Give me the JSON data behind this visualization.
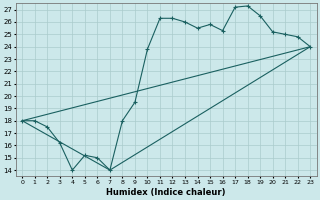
{
  "xlabel": "Humidex (Indice chaleur)",
  "background_color": "#cce8ea",
  "grid_color": "#aacccc",
  "line_color": "#1a6060",
  "xlim": [
    -0.5,
    23.5
  ],
  "ylim": [
    13.5,
    27.5
  ],
  "yticks": [
    14,
    15,
    16,
    17,
    18,
    19,
    20,
    21,
    22,
    23,
    24,
    25,
    26,
    27
  ],
  "xticks": [
    0,
    1,
    2,
    3,
    4,
    5,
    6,
    7,
    8,
    9,
    10,
    11,
    12,
    13,
    14,
    15,
    16,
    17,
    18,
    19,
    20,
    21,
    22,
    23
  ],
  "line1_x": [
    0,
    1,
    2,
    3,
    4,
    5,
    6,
    7,
    8,
    9,
    10,
    11,
    12,
    13,
    14,
    15,
    16,
    17,
    18,
    19,
    20,
    21,
    22,
    23
  ],
  "line1_y": [
    18,
    18,
    17.5,
    16.2,
    14.0,
    15.2,
    15.0,
    14.0,
    18.0,
    19.5,
    23.8,
    26.3,
    26.3,
    26.0,
    25.5,
    25.8,
    25.3,
    27.2,
    27.3,
    26.5,
    25.2,
    25.0,
    24.8,
    24.0
  ],
  "line2_x": [
    0,
    23
  ],
  "line2_y": [
    18.0,
    24.0
  ],
  "line3_x": [
    0,
    7,
    23
  ],
  "line3_y": [
    18.0,
    14.0,
    24.0
  ],
  "ytick_fontsize": 5.0,
  "xtick_fontsize": 4.5,
  "xlabel_fontsize": 6.0
}
